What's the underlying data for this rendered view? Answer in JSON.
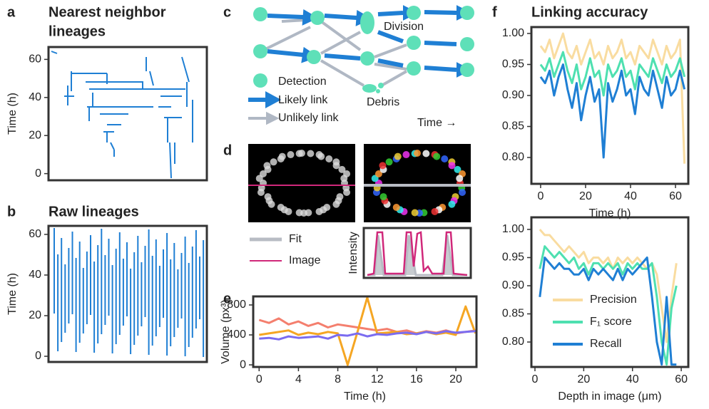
{
  "chart_data": [
    {
      "type": "lineage",
      "panel": "a",
      "title": [
        "Nearest neighbor",
        "lineages"
      ],
      "ylabel": "Time (h)",
      "ylim": [
        -3.5,
        66.5
      ],
      "yticks": [
        0,
        20,
        40,
        60
      ],
      "color": "#1f7fd4"
    },
    {
      "type": "lineage",
      "panel": "b",
      "title": "Raw lineages",
      "ylabel": "Time (h)",
      "ylim": [
        -2.8,
        64.2
      ],
      "yticks": [
        0,
        20,
        40,
        60
      ],
      "color": "#1f7fd4"
    },
    {
      "type": "line",
      "panel": "f",
      "title": "Linking accuracy",
      "xlabel": "Time (h)",
      "xlim": [
        -4.1,
        65.7
      ],
      "xticks": [
        0,
        20,
        40,
        60
      ],
      "ylim": [
        0.7575,
        1.0103
      ],
      "yticks": [
        {
          "value": 0.8,
          "label": "0.80"
        },
        {
          "value": 0.85,
          "label": "0.85"
        },
        {
          "value": 0.9,
          "label": "0.90"
        },
        {
          "value": 0.95,
          "label": "0.95"
        },
        {
          "value": 1.0,
          "label": "1.00"
        }
      ],
      "x": [
        0,
        2,
        4,
        6,
        8,
        10,
        12,
        14,
        16,
        18,
        20,
        22,
        24,
        26,
        28,
        30,
        32,
        34,
        36,
        38,
        40,
        42,
        44,
        46,
        48,
        50,
        52,
        54,
        56,
        58,
        60,
        62,
        64
      ],
      "series": [
        {
          "color": "#f9dca0",
          "values": [
            0.98,
            0.97,
            0.99,
            0.96,
            0.98,
            1.0,
            0.97,
            0.96,
            0.98,
            0.95,
            0.97,
            0.99,
            0.96,
            0.97,
            0.95,
            0.98,
            0.96,
            0.97,
            0.99,
            0.96,
            0.97,
            0.95,
            0.98,
            0.97,
            0.96,
            0.99,
            0.97,
            0.95,
            0.98,
            0.96,
            0.97,
            0.99,
            0.79
          ]
        },
        {
          "color": "#4ee0b0",
          "values": [
            0.95,
            0.94,
            0.96,
            0.93,
            0.95,
            0.97,
            0.94,
            0.92,
            0.95,
            0.91,
            0.93,
            0.96,
            0.93,
            0.94,
            0.9,
            0.95,
            0.93,
            0.94,
            0.96,
            0.93,
            0.94,
            0.91,
            0.95,
            0.94,
            0.93,
            0.96,
            0.94,
            0.92,
            0.95,
            0.93,
            0.94,
            0.96,
            0.93
          ]
        },
        {
          "color": "#1f7fd4",
          "values": [
            0.93,
            0.92,
            0.94,
            0.9,
            0.93,
            0.95,
            0.91,
            0.88,
            0.92,
            0.86,
            0.9,
            0.93,
            0.89,
            0.91,
            0.8,
            0.92,
            0.89,
            0.91,
            0.94,
            0.9,
            0.91,
            0.87,
            0.93,
            0.91,
            0.9,
            0.94,
            0.91,
            0.88,
            0.93,
            0.9,
            0.91,
            0.94,
            0.91
          ]
        }
      ]
    },
    {
      "type": "line",
      "xlabel": "Depth in image (μm)",
      "xlim": [
        -1.46,
        62.9
      ],
      "xticks": [
        0,
        20,
        40,
        60
      ],
      "ylim": [
        0.7557,
        1.0215
      ],
      "yticks": [
        {
          "value": 0.8,
          "label": "0.80"
        },
        {
          "value": 0.85,
          "label": "0.85"
        },
        {
          "value": 0.9,
          "label": "0.90"
        },
        {
          "value": 0.95,
          "label": "0.95"
        },
        {
          "value": 1.0,
          "label": "1.00"
        }
      ],
      "legend": "lower left",
      "x": [
        2,
        4,
        6,
        8,
        10,
        12,
        14,
        16,
        18,
        20,
        22,
        24,
        26,
        28,
        30,
        32,
        34,
        36,
        38,
        40,
        42,
        44,
        46,
        48,
        50,
        52,
        54,
        56,
        58
      ],
      "series": [
        {
          "name": "Precision",
          "color": "#f9dca0",
          "values": [
            1.0,
            0.99,
            0.99,
            0.98,
            0.97,
            0.96,
            0.97,
            0.96,
            0.95,
            0.96,
            0.94,
            0.95,
            0.95,
            0.94,
            0.95,
            0.93,
            0.95,
            0.94,
            0.95,
            0.94,
            0.95,
            0.94,
            0.93,
            0.94,
            0.92,
            0.86,
            0.8,
            0.88,
            0.94
          ]
        },
        {
          "name": "F₁ score",
          "color": "#4ee0b0",
          "values": [
            0.93,
            0.97,
            0.96,
            0.95,
            0.96,
            0.95,
            0.94,
            0.95,
            0.93,
            0.94,
            0.92,
            0.94,
            0.94,
            0.93,
            0.94,
            0.93,
            0.94,
            0.92,
            0.94,
            0.93,
            0.94,
            0.93,
            0.93,
            0.94,
            0.88,
            0.8,
            0.76,
            0.86,
            0.9
          ]
        },
        {
          "name": "Recall",
          "color": "#1f7fd4",
          "values": [
            0.88,
            0.95,
            0.94,
            0.93,
            0.94,
            0.93,
            0.93,
            0.92,
            0.92,
            0.93,
            0.91,
            0.93,
            0.92,
            0.93,
            0.92,
            0.91,
            0.93,
            0.91,
            0.93,
            0.92,
            0.93,
            0.94,
            0.95,
            0.88,
            0.8,
            0.76,
            0.88,
            0.76,
            0.76
          ]
        }
      ]
    },
    {
      "type": "line",
      "panel": "e",
      "xlabel": "Time (h)",
      "ylabel": "Volume (px³)",
      "xlim": [
        -0.6,
        22.1
      ],
      "xticks": [
        0,
        4,
        8,
        12,
        16,
        20
      ],
      "ylim": [
        -28,
        914
      ],
      "yticks": [
        0,
        400,
        800
      ],
      "x": [
        0,
        1,
        2,
        3,
        4,
        5,
        6,
        7,
        8,
        9,
        10,
        11,
        12,
        13,
        14,
        15,
        16,
        17,
        18,
        19,
        20,
        21,
        22
      ],
      "series": [
        {
          "color": "#f47f6e",
          "values": [
            600,
            560,
            620,
            540,
            580,
            520,
            560,
            500,
            540,
            520,
            500,
            480,
            460,
            480,
            440,
            460,
            420,
            450,
            430,
            460,
            420,
            440,
            460
          ]
        },
        {
          "color": "#f5a623",
          "values": [
            400,
            420,
            440,
            460,
            400,
            430,
            410,
            440,
            420,
            0,
            440,
            900,
            420,
            430,
            440,
            410,
            420,
            440,
            410,
            430,
            400,
            780,
            420
          ]
        },
        {
          "color": "#7b6cf0",
          "values": [
            350,
            360,
            340,
            380,
            360,
            370,
            380,
            350,
            400,
            390,
            420,
            380,
            410,
            400,
            420,
            430,
            410,
            440,
            420,
            450,
            430,
            440,
            450
          ]
        }
      ]
    }
  ],
  "diagram": {
    "c": {
      "panel": "c",
      "division": "Division",
      "detection": "Detection",
      "likely": "Likely link",
      "unlikely": "Unlikely link",
      "debris": "Debris",
      "time": "Time →"
    },
    "d": {
      "panel": "d",
      "fit": "Fit",
      "image": "Image",
      "ylabel": "Intensity"
    }
  }
}
